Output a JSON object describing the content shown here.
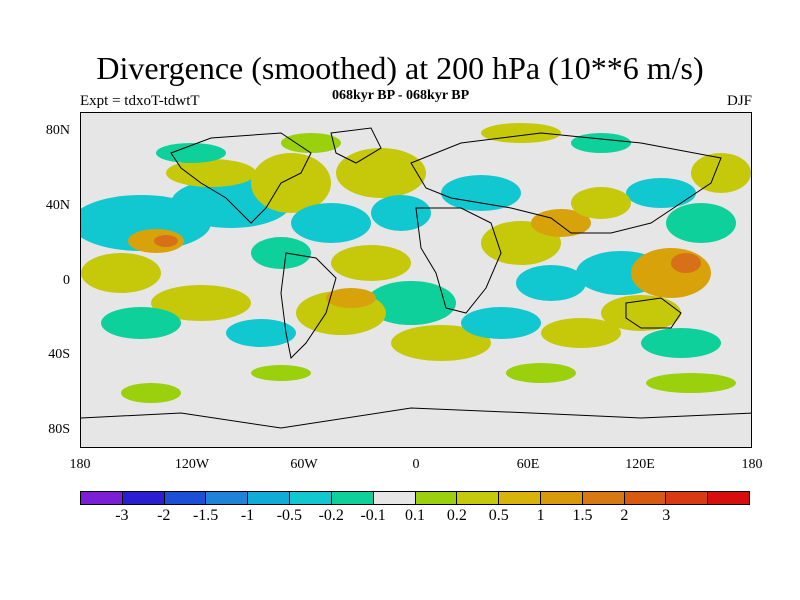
{
  "title": "Divergence (smoothed) at 200 hPa (10**6 m/s)",
  "subtitle_left": "Expt = tdxoT-tdwtT",
  "subtitle_center": "068kyr BP - 068kyr BP",
  "subtitle_right": "DJF",
  "lat_labels": [
    "80N",
    "40N",
    "0",
    "40S",
    "80S"
  ],
  "lon_labels": [
    "180",
    "120W",
    "60W",
    "0",
    "60E",
    "120E",
    "180"
  ],
  "colorbar": {
    "colors": [
      "#7a1fd6",
      "#2a1fd0",
      "#1b4fd6",
      "#1e82d8",
      "#10acd8",
      "#12c8d0",
      "#0ed09a",
      "#e6e6e6",
      "#9ad00c",
      "#c6c80a",
      "#d8b40a",
      "#d89a0a",
      "#d87810",
      "#d85a10",
      "#d83a12",
      "#d80e0e"
    ],
    "labels": [
      "-3",
      "-2",
      "-1.5",
      "-1",
      "-0.5",
      "-0.2",
      "-0.1",
      "0.1",
      "0.2",
      "0.5",
      "1",
      "1.5",
      "2",
      "3"
    ]
  },
  "map_colors": {
    "background": "#e6e6e6",
    "neg_weak": "#0ed09a",
    "neg_mid": "#12c8d0",
    "neg_strong": "#1e82d8",
    "pos_weak": "#9ad00c",
    "pos_mid": "#c6c80a",
    "pos_strong": "#d8a20a",
    "pos_vstrong": "#d8701a",
    "coast": "#000000"
  }
}
